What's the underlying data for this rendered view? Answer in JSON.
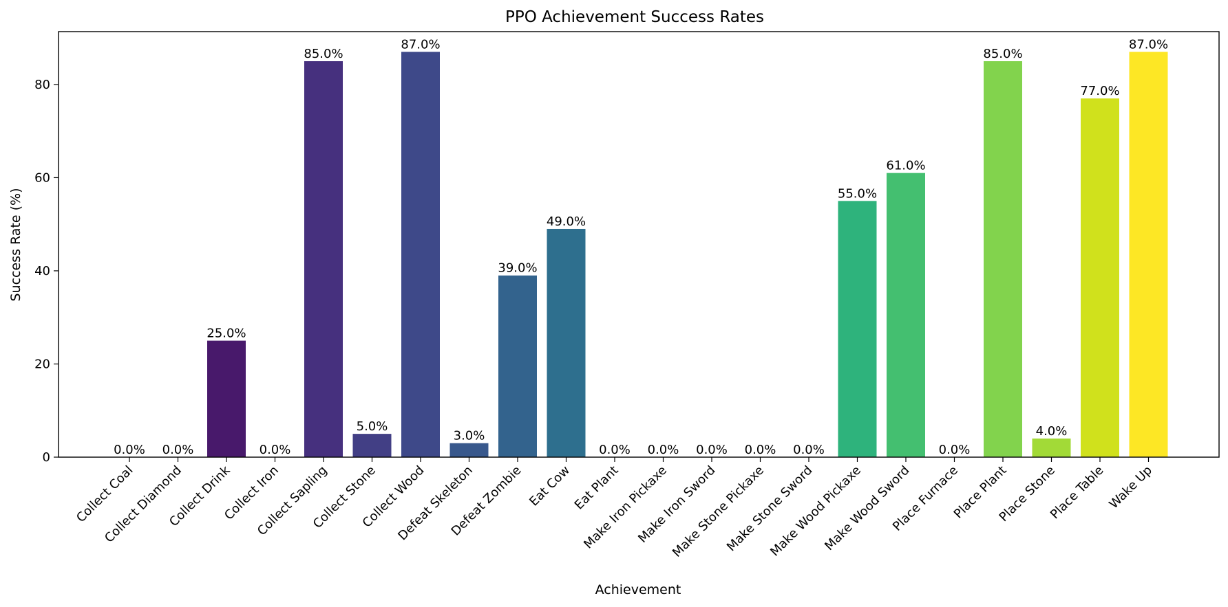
{
  "chart_data": {
    "type": "bar",
    "title": "PPO Achievement Success Rates",
    "xlabel": "Achievement",
    "ylabel": "Success Rate (%)",
    "ylim": [
      0,
      91.35
    ],
    "yticks": [
      0,
      20,
      40,
      60,
      80
    ],
    "grid": false,
    "legend": "none",
    "categories": [
      "Collect Coal",
      "Collect Diamond",
      "Collect Drink",
      "Collect Iron",
      "Collect Sapling",
      "Collect Stone",
      "Collect Wood",
      "Defeat Skeleton",
      "Defeat Zombie",
      "Eat Cow",
      "Eat Plant",
      "Make Iron Pickaxe",
      "Make Iron Sword",
      "Make Stone Pickaxe",
      "Make Stone Sword",
      "Make Wood Pickaxe",
      "Make Wood Sword",
      "Place Furnace",
      "Place Plant",
      "Place Stone",
      "Place Table",
      "Wake Up"
    ],
    "values": [
      0,
      0,
      25,
      0,
      85,
      5,
      87,
      3,
      39,
      49,
      0,
      0,
      0,
      0,
      0,
      55,
      61,
      0,
      85,
      4,
      77,
      87
    ],
    "value_labels": [
      "0.0%",
      "0.0%",
      "25.0%",
      "0.0%",
      "85.0%",
      "5.0%",
      "87.0%",
      "3.0%",
      "39.0%",
      "49.0%",
      "0.0%",
      "0.0%",
      "0.0%",
      "0.0%",
      "0.0%",
      "55.0%",
      "61.0%",
      "0.0%",
      "85.0%",
      "4.0%",
      "77.0%",
      "87.0%"
    ],
    "colors": [
      "#440154",
      "#470d60",
      "#48196b",
      "#482374",
      "#46307e",
      "#423f85",
      "#3e4989",
      "#38588c",
      "#33638d",
      "#2e6f8e",
      "#29798e",
      "#25858e",
      "#218f8d",
      "#1e9b8a",
      "#20a486",
      "#2eb37c",
      "#44bf70",
      "#5ec962",
      "#82d34d",
      "#a2da37",
      "#d0e11c",
      "#fde725"
    ]
  }
}
